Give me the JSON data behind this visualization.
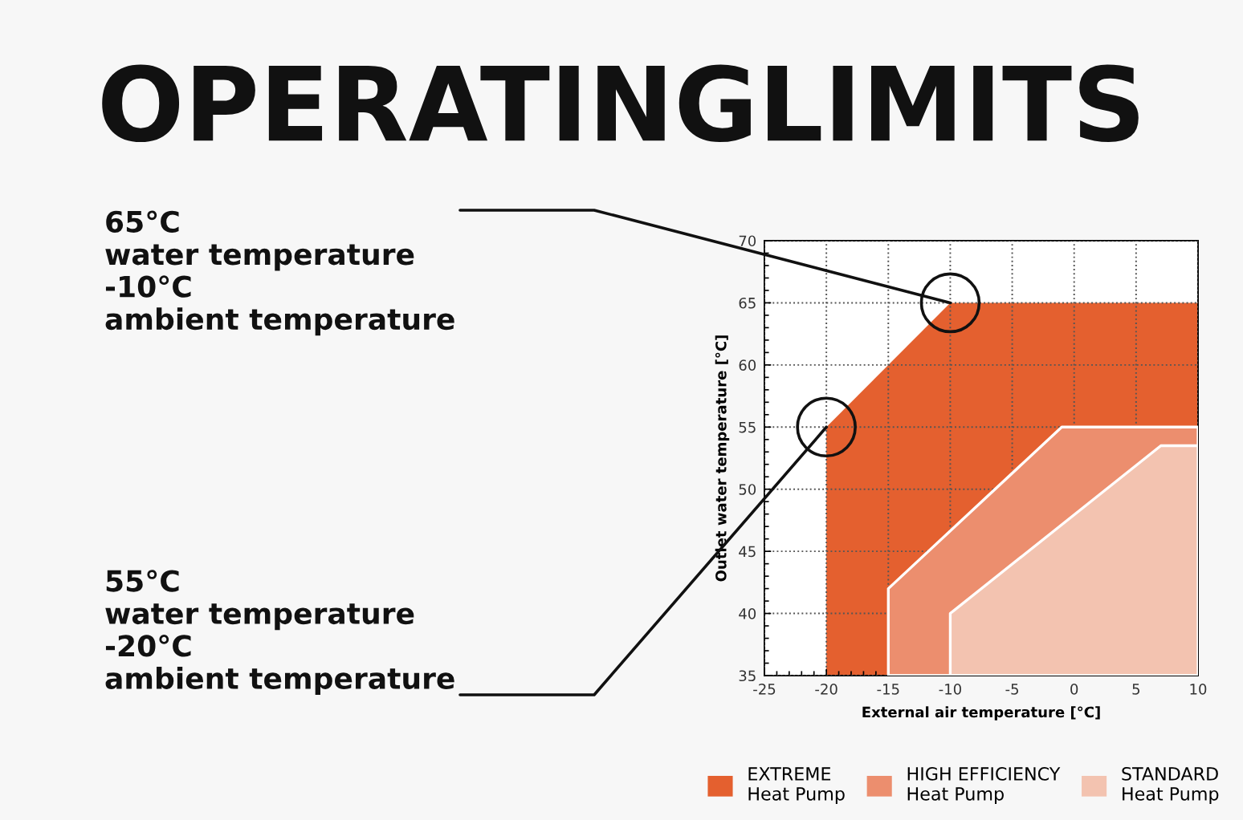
{
  "chart_data": {
    "type": "area",
    "title": "OPERATINGLIMITS",
    "xlabel": "External air temperature [°C]",
    "ylabel": "Outlet water temperature [°C]",
    "series": [
      {
        "name": "EXTREME\nHeat Pump",
        "color": "#e4602f",
        "x": [
          -20,
          -10,
          10
        ],
        "values": [
          55,
          65,
          65
        ]
      },
      {
        "name": "HIGH EFFICIENCY\nHeat Pump",
        "color": "#ec8e6e",
        "x": [
          -15,
          -1,
          10
        ],
        "values": [
          42,
          55,
          55
        ]
      },
      {
        "name": "STANDARD\nHeat Pump",
        "color": "#f3c3b0",
        "x": [
          -10,
          7,
          10
        ],
        "values": [
          40,
          53.5,
          53.5
        ]
      }
    ],
    "xlim": [
      -25,
      10
    ],
    "xticks": [
      -25,
      -20,
      -15,
      -10,
      -5,
      0,
      5,
      10
    ],
    "ylim": [
      35,
      70
    ],
    "yticks": [
      35,
      40,
      45,
      50,
      55,
      60,
      65,
      70
    ],
    "grid": true,
    "legend": "bottom",
    "annotations": [
      {
        "text": "65°C\nwater temperature\n-10°C\nambient temperature",
        "x": -10,
        "y": 65
      },
      {
        "text": "55°C\nwater temperature\n-20°C\nambient temperature",
        "x": -20,
        "y": 55
      }
    ]
  }
}
